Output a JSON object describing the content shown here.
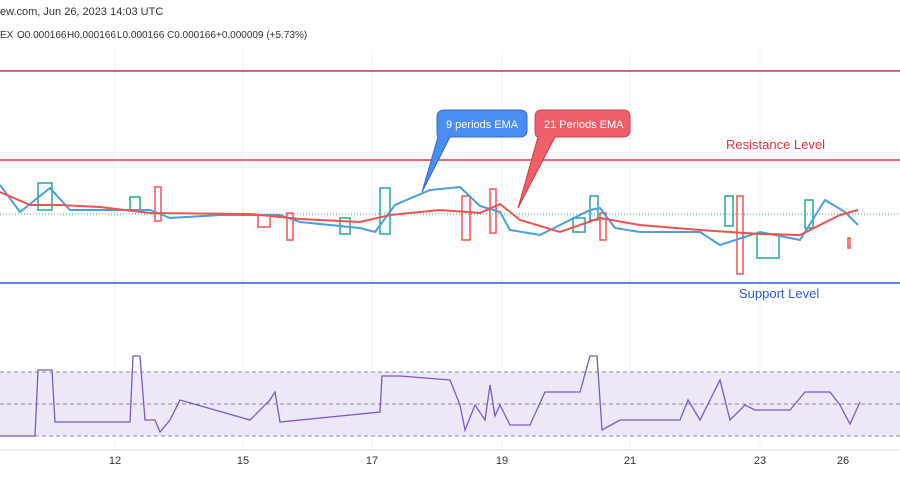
{
  "header": {
    "source": "ew.com, Jun 26, 2023 14:03 UTC",
    "symbol": "EX",
    "open": "O0.000166",
    "high": "H0.000166",
    "low": "L0.000166",
    "close": "C0.000166",
    "change": "+0.000009 (+5.73%)"
  },
  "annotations": {
    "ema9": "9 periods EMA",
    "ema21": "21 Periods EMA",
    "resistance": "Resistance Level",
    "support": "Support Level"
  },
  "x_axis": [
    "12",
    "15",
    "17",
    "19",
    "21",
    "23",
    "26"
  ]
}
